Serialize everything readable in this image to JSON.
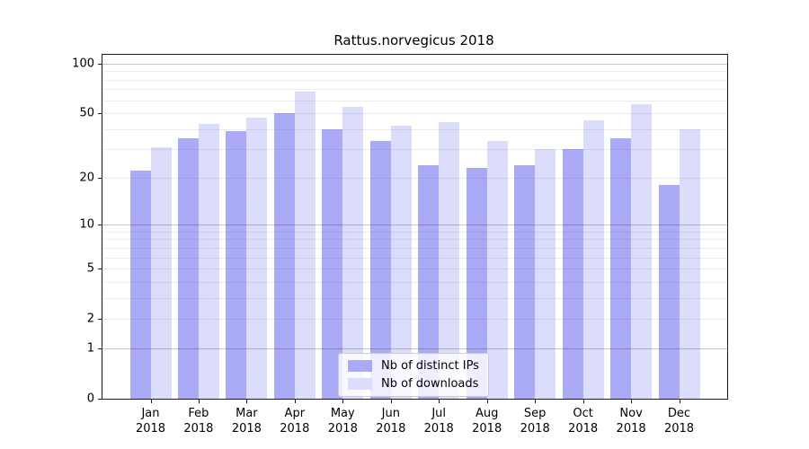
{
  "chart_data": {
    "type": "bar",
    "title": "Rattus.norvegicus 2018",
    "months": [
      "Jan",
      "Feb",
      "Mar",
      "Apr",
      "May",
      "Jun",
      "Jul",
      "Aug",
      "Sep",
      "Oct",
      "Nov",
      "Dec"
    ],
    "x_year": "2018",
    "series": [
      {
        "name": "Nb of distinct IPs",
        "color": "#aaaaf7",
        "values": [
          22,
          35,
          39,
          50,
          40,
          34,
          24,
          23,
          24,
          30,
          35,
          18
        ]
      },
      {
        "name": "Nb of downloads",
        "color": "#dcdcfb",
        "values": [
          31,
          43,
          47,
          68,
          55,
          42,
          44,
          34,
          30,
          45,
          57,
          40
        ]
      }
    ],
    "y_scale": "log10(value+1)",
    "y_ticks": [
      0,
      1,
      2,
      5,
      10,
      20,
      50,
      100
    ],
    "y_gridlines": [
      1,
      2,
      3,
      4,
      5,
      6,
      7,
      8,
      9,
      10,
      20,
      30,
      40,
      50,
      60,
      70,
      80,
      90,
      100
    ],
    "y_major_gridlines": [
      1,
      10,
      100
    ],
    "ylim": [
      0,
      113
    ],
    "grid": true,
    "legend_position": "bottom-center",
    "axis_color": "#1a1a1a",
    "grid_minor_color": "rgba(0,0,0,0.07)",
    "grid_major_color": "rgba(0,0,0,0.22)"
  }
}
